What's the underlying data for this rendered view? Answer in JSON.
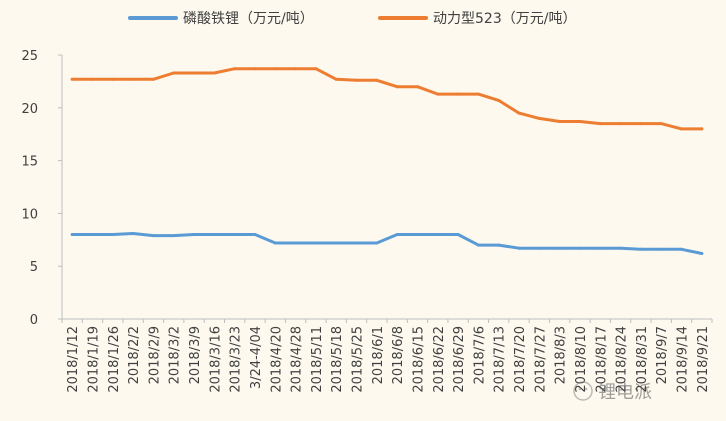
{
  "chart_data": {
    "type": "line",
    "title": "",
    "xlabel": "",
    "ylabel": "",
    "ylim": [
      0,
      25
    ],
    "yticks": [
      0,
      5,
      10,
      15,
      20,
      25
    ],
    "grid": false,
    "legend_position": "top",
    "categories": [
      "2018/1/12",
      "2018/1/19",
      "2018/1/26",
      "2018/2/2",
      "2018/2/9",
      "2018/3/2",
      "2018/3/9",
      "2018/3/16",
      "2018/3/23",
      "3/24-4/04",
      "2018/4/20",
      "2018/4/28",
      "2018/5/11",
      "2018/5/18",
      "2018/5/25",
      "2018/6/1",
      "2018/6/8",
      "2018/6/15",
      "2018/6/22",
      "2018/6/29",
      "2018/7/6",
      "2018/7/13",
      "2018/7/20",
      "2018/7/27",
      "2018/8/3",
      "2018/8/10",
      "2018/8/17",
      "2018/8/24",
      "2018/8/31",
      "2018/9/7",
      "2018/9/14",
      "2018/9/21"
    ],
    "series": [
      {
        "name": "磷酸铁锂（万元/吨）",
        "color": "#5b9bd5",
        "values": [
          8.0,
          8.0,
          8.0,
          8.1,
          7.9,
          7.9,
          8.0,
          8.0,
          8.0,
          8.0,
          7.2,
          7.2,
          7.2,
          7.2,
          7.2,
          7.2,
          8.0,
          8.0,
          8.0,
          8.0,
          7.0,
          7.0,
          6.7,
          6.7,
          6.7,
          6.7,
          6.7,
          6.7,
          6.6,
          6.6,
          6.6,
          6.2
        ]
      },
      {
        "name": "动力型523（万元/吨）",
        "color": "#ed7d31",
        "values": [
          22.7,
          22.7,
          22.7,
          22.7,
          22.7,
          23.3,
          23.3,
          23.3,
          23.7,
          23.7,
          23.7,
          23.7,
          23.7,
          22.7,
          22.6,
          22.6,
          22.0,
          22.0,
          21.3,
          21.3,
          21.3,
          20.7,
          19.5,
          19.0,
          18.7,
          18.7,
          18.5,
          18.5,
          18.5,
          18.5,
          18.0,
          18.0
        ]
      }
    ]
  },
  "watermark": "锂电派"
}
